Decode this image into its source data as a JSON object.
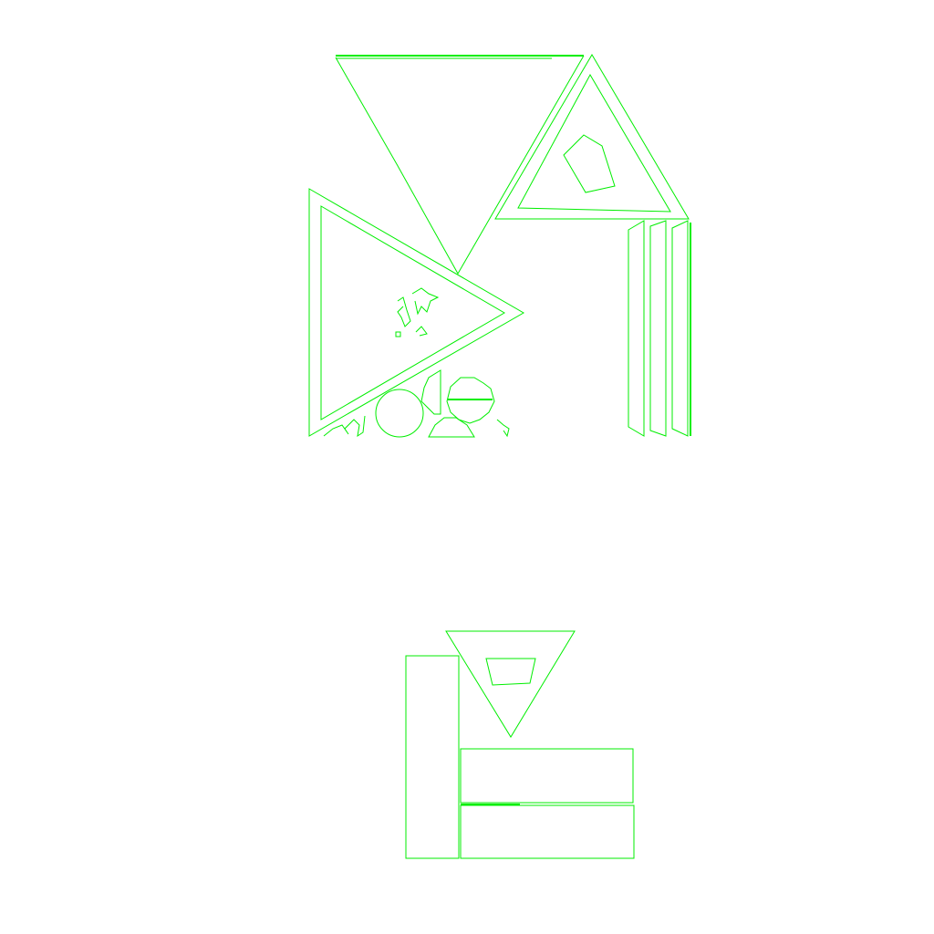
{
  "scene": {
    "background_color": "#ffffff",
    "line_color": "#00ee00",
    "groups": [
      {
        "name": "upper-structure",
        "pieces": [
          "triangle-left",
          "triangle-top-right",
          "guide-beam",
          "vertical-slats",
          "rock-pile"
        ]
      },
      {
        "name": "lower-structure",
        "pieces": [
          "inverted-triangle",
          "tall-column",
          "horizontal-block-upper",
          "horizontal-block-lower"
        ]
      }
    ]
  }
}
